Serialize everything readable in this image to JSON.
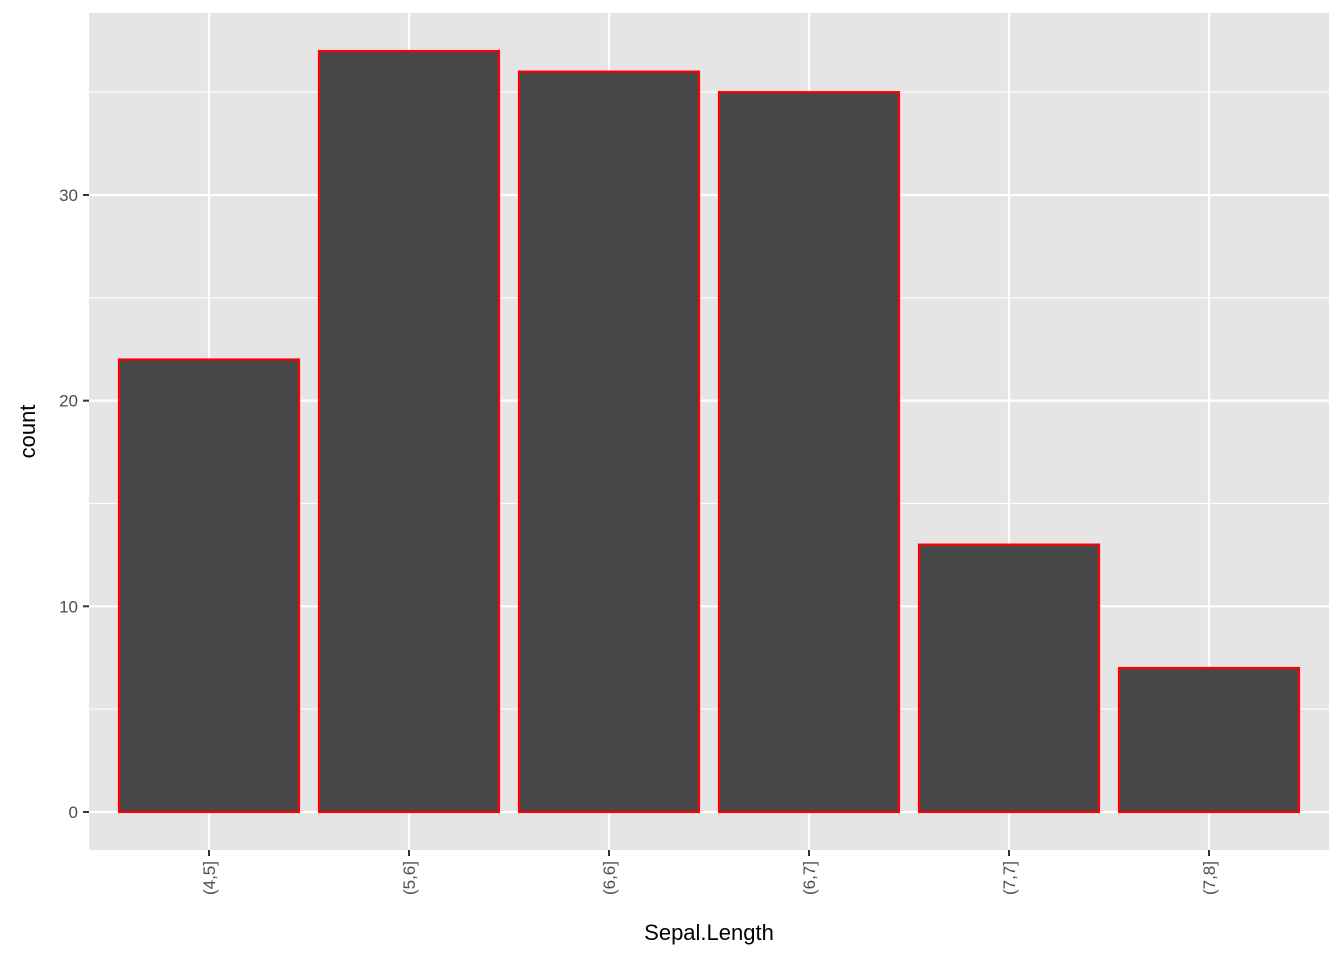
{
  "chart_data": {
    "type": "bar",
    "categories": [
      "(4,5]",
      "(5,6]",
      "(6,6]",
      "(6,7]",
      "(7,7]",
      "(7,8]"
    ],
    "values": [
      22,
      37,
      36,
      35,
      13,
      7
    ],
    "title": "",
    "xlabel": "Sepal.Length",
    "ylabel": "count",
    "ylim": [
      -1.85,
      38.85
    ],
    "yticks": [
      0,
      10,
      20,
      30
    ],
    "grid": true,
    "legend": "none",
    "x_tick_rotation": "vertical",
    "colors": {
      "panel_background": "#e5e5e5",
      "gridline": "#ffffff",
      "bar_fill": "#474747",
      "bar_outline": "#ff0000",
      "tick_label": "#4d4d4d",
      "axis_title": "#000000"
    }
  }
}
